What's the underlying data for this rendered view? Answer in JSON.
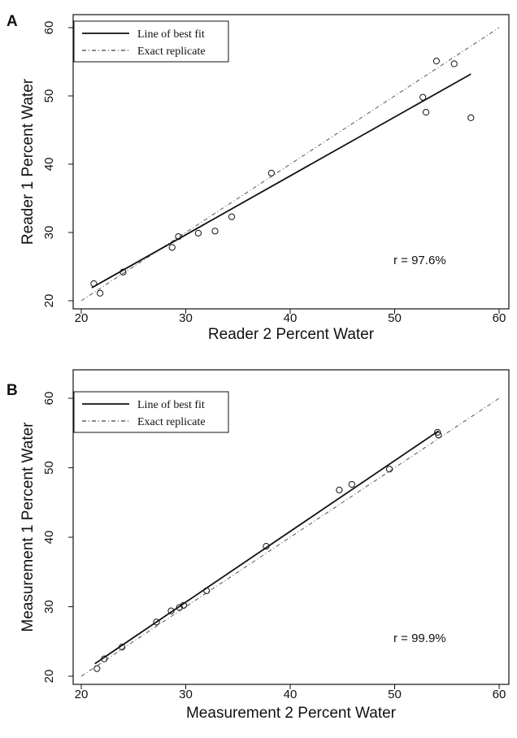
{
  "chart_data": [
    {
      "type": "scatter",
      "panel_label": "A",
      "xlabel": "Reader 2 Percent Water",
      "ylabel": "Reader 1 Percent Water",
      "xlim": [
        20,
        60
      ],
      "ylim": [
        20,
        60
      ],
      "xticks": [
        20,
        30,
        40,
        50,
        60
      ],
      "yticks": [
        20,
        30,
        40,
        50,
        60
      ],
      "annotation": "r = 97.6%",
      "legend": {
        "position": "top-left",
        "entries": [
          "Line of best fit",
          "Exact replicate"
        ]
      },
      "points": [
        {
          "x": 21.2,
          "y": 22.5
        },
        {
          "x": 21.8,
          "y": 21.1
        },
        {
          "x": 24.0,
          "y": 24.2
        },
        {
          "x": 28.7,
          "y": 27.8
        },
        {
          "x": 29.3,
          "y": 29.4
        },
        {
          "x": 31.2,
          "y": 29.9
        },
        {
          "x": 32.8,
          "y": 30.2
        },
        {
          "x": 34.4,
          "y": 32.3
        },
        {
          "x": 38.2,
          "y": 38.7
        },
        {
          "x": 52.7,
          "y": 49.8
        },
        {
          "x": 53.0,
          "y": 47.6
        },
        {
          "x": 54.0,
          "y": 55.1
        },
        {
          "x": 55.7,
          "y": 54.7
        },
        {
          "x": 57.3,
          "y": 46.8
        }
      ],
      "fit_line": [
        [
          21.0,
          21.9
        ],
        [
          57.3,
          53.2
        ]
      ],
      "replicate_line": [
        [
          20.0,
          20.0
        ],
        [
          60.0,
          60.0
        ]
      ],
      "grid": false
    },
    {
      "type": "scatter",
      "panel_label": "B",
      "xlabel": "Measurement 2 Percent Water",
      "ylabel": "Measurement 1 Percent Water",
      "xlim": [
        20,
        60
      ],
      "ylim": [
        20,
        60
      ],
      "xticks": [
        20,
        30,
        40,
        50,
        60
      ],
      "yticks": [
        20,
        30,
        40,
        50,
        60
      ],
      "annotation": "r = 99.9%",
      "legend": {
        "position": "top-left",
        "entries": [
          "Line of best fit",
          "Exact replicate"
        ]
      },
      "points": [
        {
          "x": 21.5,
          "y": 21.1
        },
        {
          "x": 22.2,
          "y": 22.5
        },
        {
          "x": 23.9,
          "y": 24.2
        },
        {
          "x": 27.2,
          "y": 27.8
        },
        {
          "x": 28.6,
          "y": 29.4
        },
        {
          "x": 29.4,
          "y": 29.9
        },
        {
          "x": 29.8,
          "y": 30.2
        },
        {
          "x": 32.0,
          "y": 32.3
        },
        {
          "x": 37.7,
          "y": 38.7
        },
        {
          "x": 44.7,
          "y": 46.8
        },
        {
          "x": 45.9,
          "y": 47.6
        },
        {
          "x": 49.5,
          "y": 49.8
        },
        {
          "x": 54.1,
          "y": 55.1
        },
        {
          "x": 54.2,
          "y": 54.7
        }
      ],
      "fit_line": [
        [
          21.3,
          21.8
        ],
        [
          54.2,
          55.3
        ]
      ],
      "replicate_line": [
        [
          20.0,
          20.0
        ],
        [
          60.0,
          60.0
        ]
      ],
      "grid": false
    }
  ]
}
